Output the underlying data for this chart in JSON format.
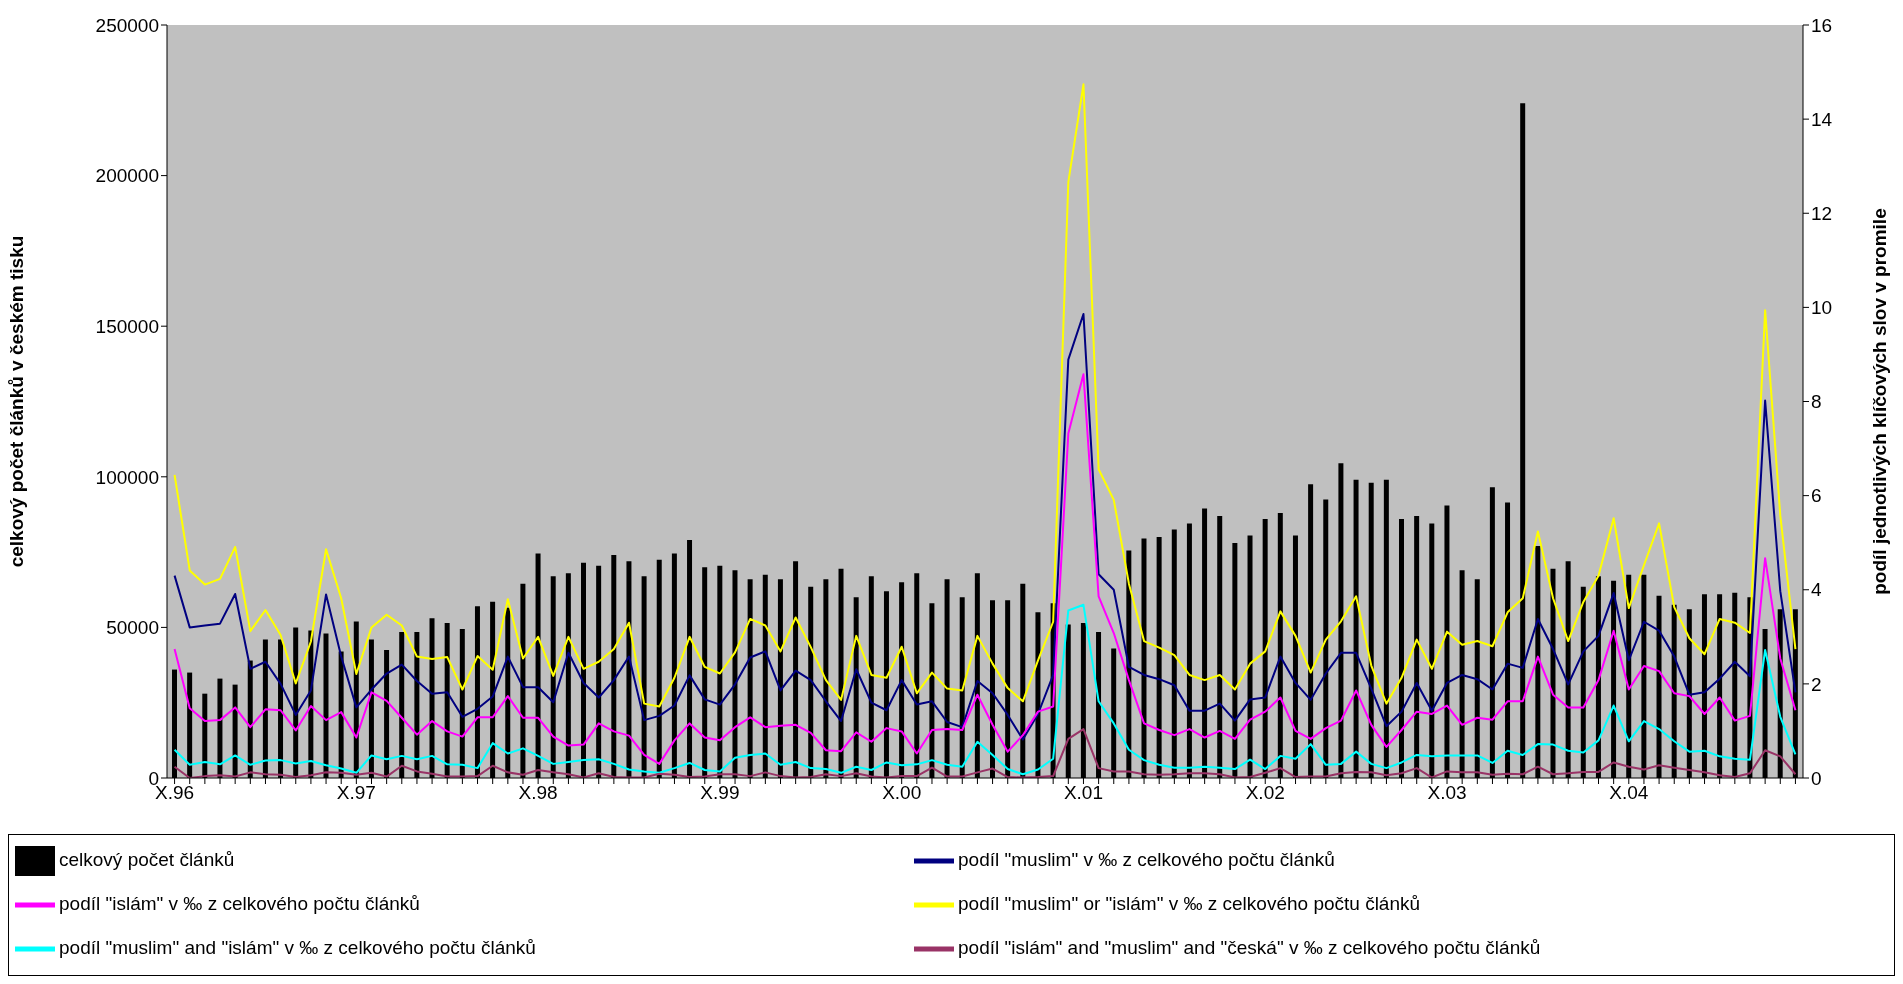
{
  "chart_data": {
    "type": "bar",
    "ylabel": "celkový počet článků v českém tisku",
    "y2label": "podíl jednotlivých klíčových slov v promile",
    "categories": [
      "X.96",
      null,
      null,
      null,
      null,
      null,
      null,
      null,
      null,
      null,
      null,
      null,
      "X.97",
      null,
      null,
      null,
      null,
      null,
      null,
      null,
      null,
      null,
      null,
      null,
      "X.98",
      null,
      null,
      null,
      null,
      null,
      null,
      null,
      null,
      null,
      null,
      null,
      "X.99",
      null,
      null,
      null,
      null,
      null,
      null,
      null,
      null,
      null,
      null,
      null,
      "X.00",
      null,
      null,
      null,
      null,
      null,
      null,
      null,
      null,
      null,
      null,
      null,
      "X.01",
      null,
      null,
      null,
      null,
      null,
      null,
      null,
      null,
      null,
      null,
      null,
      "X.02",
      null,
      null,
      null,
      null,
      null,
      null,
      null,
      null,
      null,
      null,
      null,
      "X.03",
      null,
      null,
      null,
      null,
      null,
      null,
      null,
      null,
      null,
      null,
      null,
      "X.04",
      null,
      null,
      null,
      null,
      null,
      null,
      null,
      null,
      null,
      null,
      null
    ],
    "ylim": [
      0,
      250000
    ],
    "yticks": [
      0,
      50000,
      100000,
      150000,
      200000,
      250000
    ],
    "y2lim": [
      0,
      16
    ],
    "y2ticks": [
      0,
      2,
      4,
      6,
      8,
      10,
      12,
      14,
      16
    ],
    "grid": false,
    "legend": "bottom",
    "marker": "none",
    "series": [
      {
        "name": "celkový počet článků",
        "color": "#000000",
        "values": [
          36000,
          35000,
          28000,
          33000,
          31000,
          39000,
          46000,
          46000,
          50000,
          49000,
          48000,
          42000,
          52000,
          46000,
          42500,
          48500,
          48500,
          53000,
          51500,
          49500,
          57000,
          58500,
          56500,
          64500,
          74500,
          67000,
          68000,
          71500,
          70500,
          74000,
          72000,
          67000,
          72500,
          74500,
          79000,
          70000,
          70500,
          69000,
          66000,
          67500,
          66000,
          72000,
          63500,
          66000,
          69500,
          60000,
          67000,
          62000,
          65000,
          68000,
          58000,
          66000,
          60000,
          68000,
          59000,
          59000,
          64500,
          55000,
          58000,
          51000,
          51500,
          48500,
          43000,
          75500,
          79500,
          80000,
          82500,
          84500,
          89500,
          87000,
          78000,
          80500,
          86000,
          88000,
          80500,
          97500,
          92500,
          104500,
          99000,
          98000,
          99000,
          86000,
          87000,
          84500,
          90500,
          69000,
          66000,
          96500,
          91500,
          224000,
          77000,
          69500,
          72000,
          63500,
          67000,
          65500,
          67500,
          67500,
          60500,
          57500,
          56000,
          61000,
          61000,
          61500,
          60000,
          49500,
          56000,
          56000
        ]
      },
      {
        "name": "podíl \"muslim\" v ‰ z celkového počtu článků",
        "type": "line",
        "axis": "y2",
        "color": "#000080",
        "values": [
          4.3,
          3.2,
          3.24,
          3.28,
          3.91,
          2.32,
          2.47,
          2.0,
          1.34,
          1.86,
          3.9,
          2.58,
          1.5,
          1.88,
          2.22,
          2.41,
          2.06,
          1.79,
          1.82,
          1.3,
          1.47,
          1.73,
          2.58,
          1.93,
          1.93,
          1.61,
          2.66,
          2.02,
          1.71,
          2.08,
          2.58,
          1.23,
          1.32,
          1.54,
          2.18,
          1.67,
          1.56,
          1.99,
          2.56,
          2.69,
          1.86,
          2.28,
          2.08,
          1.63,
          1.21,
          2.31,
          1.6,
          1.44,
          2.08,
          1.56,
          1.63,
          1.19,
          1.08,
          2.06,
          1.8,
          1.34,
          0.82,
          1.36,
          2.19,
          8.89,
          9.86,
          4.33,
          4.0,
          2.36,
          2.19,
          2.1,
          1.97,
          1.43,
          1.43,
          1.58,
          1.22,
          1.67,
          1.71,
          2.58,
          2.02,
          1.66,
          2.22,
          2.66,
          2.66,
          1.9,
          1.1,
          1.41,
          2.02,
          1.43,
          2.02,
          2.19,
          2.1,
          1.88,
          2.43,
          2.34,
          3.38,
          2.74,
          1.99,
          2.69,
          3.02,
          3.93,
          2.5,
          3.32,
          3.13,
          2.58,
          1.77,
          1.82,
          2.11,
          2.47,
          2.16,
          8.02,
          3.97,
          1.82
        ]
      },
      {
        "name": "podíl \"islám\" v ‰ z celkového počtu článků",
        "type": "line",
        "axis": "y2",
        "color": "#ff00ff",
        "values": [
          2.74,
          1.48,
          1.21,
          1.23,
          1.5,
          1.08,
          1.46,
          1.44,
          1.01,
          1.53,
          1.23,
          1.4,
          0.86,
          1.82,
          1.64,
          1.28,
          0.92,
          1.21,
          0.99,
          0.88,
          1.29,
          1.29,
          1.74,
          1.28,
          1.28,
          0.88,
          0.69,
          0.71,
          1.16,
          0.99,
          0.9,
          0.49,
          0.3,
          0.8,
          1.16,
          0.86,
          0.8,
          1.08,
          1.29,
          1.08,
          1.11,
          1.13,
          0.96,
          0.59,
          0.57,
          0.97,
          0.77,
          1.06,
          0.99,
          0.52,
          1.02,
          1.04,
          1.02,
          1.77,
          1.13,
          0.56,
          0.91,
          1.41,
          1.52,
          7.32,
          8.58,
          3.86,
          3.08,
          2.08,
          1.16,
          1.02,
          0.91,
          1.04,
          0.86,
          1.0,
          0.83,
          1.24,
          1.41,
          1.71,
          1.0,
          0.83,
          1.06,
          1.22,
          1.86,
          1.13,
          0.66,
          1.02,
          1.41,
          1.36,
          1.54,
          1.13,
          1.28,
          1.24,
          1.63,
          1.63,
          2.58,
          1.77,
          1.5,
          1.5,
          2.08,
          3.13,
          1.88,
          2.38,
          2.27,
          1.8,
          1.74,
          1.36,
          1.71,
          1.22,
          1.32,
          4.67,
          2.54,
          1.44
        ]
      },
      {
        "name": "podíl \"muslim\" or \"islám\" v ‰ z celkového počtu článků",
        "type": "line",
        "axis": "y2",
        "color": "#ffff00",
        "values": [
          6.44,
          4.41,
          4.11,
          4.23,
          4.91,
          3.12,
          3.57,
          3.04,
          2.01,
          2.9,
          4.86,
          3.82,
          2.21,
          3.2,
          3.47,
          3.24,
          2.58,
          2.53,
          2.57,
          1.88,
          2.59,
          2.3,
          3.8,
          2.54,
          3.0,
          2.17,
          3.0,
          2.32,
          2.47,
          2.74,
          3.3,
          1.58,
          1.52,
          2.13,
          3.0,
          2.36,
          2.22,
          2.67,
          3.38,
          3.24,
          2.69,
          3.41,
          2.78,
          2.08,
          1.66,
          3.02,
          2.19,
          2.13,
          2.79,
          1.8,
          2.24,
          1.9,
          1.86,
          3.02,
          2.43,
          1.91,
          1.63,
          2.5,
          3.32,
          12.66,
          14.74,
          6.56,
          5.91,
          4.13,
          2.91,
          2.77,
          2.61,
          2.19,
          2.08,
          2.19,
          1.88,
          2.43,
          2.69,
          3.54,
          3.02,
          2.24,
          2.94,
          3.33,
          3.86,
          2.39,
          1.58,
          2.13,
          2.94,
          2.32,
          3.11,
          2.83,
          2.91,
          2.8,
          3.52,
          3.82,
          5.24,
          3.82,
          2.91,
          3.74,
          4.3,
          5.52,
          3.61,
          4.52,
          5.41,
          3.63,
          2.97,
          2.63,
          3.38,
          3.3,
          3.08,
          9.94,
          5.58,
          2.74
        ]
      },
      {
        "name": "podíl \"muslim\" and \"islám\" v ‰ z celkového počtu článků",
        "type": "line",
        "axis": "y2",
        "color": "#00ffff",
        "values": [
          0.6,
          0.28,
          0.34,
          0.29,
          0.48,
          0.28,
          0.37,
          0.38,
          0.31,
          0.36,
          0.27,
          0.2,
          0.11,
          0.48,
          0.4,
          0.47,
          0.4,
          0.47,
          0.29,
          0.28,
          0.21,
          0.74,
          0.52,
          0.63,
          0.47,
          0.3,
          0.34,
          0.38,
          0.4,
          0.3,
          0.18,
          0.14,
          0.11,
          0.21,
          0.32,
          0.17,
          0.14,
          0.43,
          0.49,
          0.52,
          0.28,
          0.34,
          0.21,
          0.19,
          0.11,
          0.24,
          0.17,
          0.33,
          0.27,
          0.29,
          0.38,
          0.28,
          0.24,
          0.77,
          0.49,
          0.19,
          0.08,
          0.18,
          0.41,
          3.56,
          3.68,
          1.63,
          1.16,
          0.6,
          0.38,
          0.28,
          0.22,
          0.22,
          0.24,
          0.22,
          0.19,
          0.39,
          0.19,
          0.47,
          0.41,
          0.72,
          0.28,
          0.3,
          0.56,
          0.3,
          0.21,
          0.33,
          0.49,
          0.46,
          0.48,
          0.48,
          0.48,
          0.32,
          0.58,
          0.49,
          0.72,
          0.71,
          0.58,
          0.54,
          0.8,
          1.54,
          0.78,
          1.21,
          1.04,
          0.78,
          0.56,
          0.58,
          0.46,
          0.41,
          0.39,
          2.72,
          1.3,
          0.5
        ]
      },
      {
        "name": "podíl \"islám\" and \"muslim\" and \"česká\" v ‰ z celkového počtu článků",
        "type": "line",
        "axis": "y2",
        "color": "#993366",
        "values": [
          0.24,
          0,
          0.04,
          0.06,
          0.03,
          0.12,
          0.08,
          0.07,
          0.02,
          0.06,
          0.12,
          0.11,
          0.07,
          0.11,
          0.03,
          0.26,
          0.14,
          0.09,
          0.03,
          0.03,
          0.04,
          0.26,
          0.12,
          0.07,
          0.17,
          0.12,
          0.08,
          0.01,
          0.1,
          0.02,
          0.01,
          0.01,
          0.09,
          0.07,
          0.02,
          0.03,
          0.08,
          0.08,
          0.04,
          0.12,
          0.04,
          0.01,
          0.02,
          0.08,
          0.04,
          0.1,
          0.03,
          0.01,
          0.04,
          0.04,
          0.22,
          0.03,
          0.03,
          0.12,
          0.2,
          0.02,
          0.01,
          0.02,
          0.04,
          0.83,
          1.04,
          0.21,
          0.14,
          0.14,
          0.08,
          0.07,
          0.08,
          0.1,
          0.1,
          0.08,
          0.01,
          0.02,
          0.11,
          0.21,
          0.02,
          0.03,
          0.03,
          0.1,
          0.13,
          0.12,
          0.06,
          0.1,
          0.21,
          0.01,
          0.14,
          0.12,
          0.12,
          0.07,
          0.09,
          0.08,
          0.24,
          0.08,
          0.1,
          0.13,
          0.13,
          0.33,
          0.24,
          0.18,
          0.27,
          0.22,
          0.17,
          0.12,
          0.06,
          0.02,
          0.1,
          0.59,
          0.46,
          0.08
        ]
      }
    ]
  }
}
